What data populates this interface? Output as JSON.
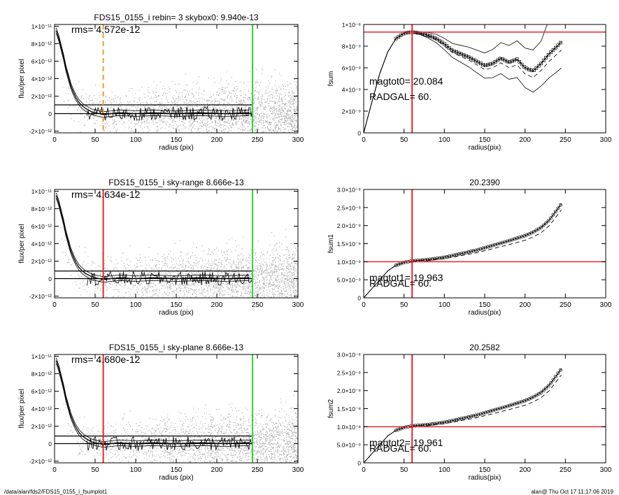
{
  "footer": {
    "path": "/data/alan/fds2/FDS15_0155_i_fsumplot1",
    "stamp": "alan@  Thu Oct 17 11:17:06 2019"
  },
  "colors": {
    "red": "#e8252b",
    "green": "#2fd62f",
    "orange": "#f29a2e",
    "scatter": "#a9a9a9"
  },
  "chart_data": [
    {
      "type": "scatter",
      "title": "FDS15_0155_i rebin= 3    skybox0:  9.940e-13",
      "annotation": "rms= 4.572e-12",
      "xlabel": "radius (pix)",
      "ylabel": "flux/per pixel",
      "xlim": [
        0,
        300
      ],
      "ylim": [
        -2.2e-12,
        1.02e-11
      ],
      "xticks": [
        0,
        50,
        100,
        150,
        200,
        250,
        300
      ],
      "yticks": [
        -2e-12,
        0,
        2e-12,
        4e-12,
        6e-12,
        8e-12,
        1e-11
      ],
      "ytick_labels": [
        "-2×10⁻¹²",
        "0",
        "2×10⁻¹²",
        "4×10⁻¹²",
        "6×10⁻¹²",
        "8×10⁻¹²",
        "1×10⁻¹¹"
      ],
      "hlines": [
        1e-12,
        0
      ],
      "vlines": [
        {
          "x": 60,
          "color": "orange",
          "style": "dashed"
        },
        {
          "x": 244,
          "color": "green",
          "style": "solid"
        }
      ],
      "profile_x": [
        2,
        5,
        8,
        11,
        14,
        17,
        20,
        23,
        26,
        30,
        34,
        38,
        42,
        46,
        50,
        55,
        60,
        70,
        80,
        100,
        120,
        150,
        180,
        210,
        240
      ],
      "profile_y": [
        9.5e-12,
        8.7e-12,
        7.6e-12,
        6.5e-12,
        5.2e-12,
        4.2e-12,
        3.2e-12,
        2.5e-12,
        1.9e-12,
        1.3e-12,
        9e-13,
        6e-13,
        4e-13,
        2e-13,
        1e-13,
        0.0,
        -1e-13,
        0.0,
        1e-13,
        0.0,
        1e-13,
        0.0,
        1e-13,
        0.0,
        1e-13
      ]
    },
    {
      "type": "line",
      "title": "",
      "xlabel": "radius(pix)",
      "ylabel": "fsum",
      "annotations": [
        "magtot0=  20.084",
        "RADGAL=     60."
      ],
      "xlim": [
        0,
        300
      ],
      "ylim": [
        0,
        1e-08
      ],
      "xticks": [
        0,
        50,
        100,
        150,
        200,
        250,
        300
      ],
      "yticks": [
        0,
        2e-09,
        4e-09,
        6e-09,
        8e-09,
        1e-08
      ],
      "ytick_labels": [
        "0",
        "2×10⁻⁹",
        "4×10⁻⁹",
        "6×10⁻⁹",
        "8×10⁻⁹",
        "1×10⁻⁸"
      ],
      "hline": 9.3e-09,
      "vline": 60,
      "x": [
        0,
        10,
        20,
        30,
        40,
        50,
        60,
        70,
        80,
        90,
        100,
        110,
        120,
        130,
        140,
        150,
        160,
        170,
        180,
        190,
        200,
        210,
        220,
        230,
        240,
        245
      ],
      "y": [
        0,
        2.8e-09,
        5.5e-09,
        7.5e-09,
        8.7e-09,
        9.2e-09,
        9.3e-09,
        9.2e-09,
        9e-09,
        8.7e-09,
        8.2e-09,
        7.6e-09,
        7.3e-09,
        7e-09,
        6.6e-09,
        6.2e-09,
        6.4e-09,
        6.9e-09,
        6.5e-09,
        6.8e-09,
        6e-09,
        5.7e-09,
        6.4e-09,
        7.3e-09,
        8e-09,
        8.4e-09
      ]
    },
    {
      "type": "scatter",
      "title": "FDS15_0155_i sky-range  8.666e-13",
      "annotation": "rms= 4.634e-12",
      "xlabel": "radius (pix)",
      "ylabel": "flux/per pixel",
      "xlim": [
        0,
        300
      ],
      "ylim": [
        -2.2e-12,
        1.02e-11
      ],
      "xticks": [
        0,
        50,
        100,
        150,
        200,
        250,
        300
      ],
      "yticks": [
        -2e-12,
        0,
        2e-12,
        4e-12,
        6e-12,
        8e-12,
        1e-11
      ],
      "ytick_labels": [
        "-2×10⁻¹²",
        "0",
        "2×10⁻¹²",
        "4×10⁻¹²",
        "6×10⁻¹²",
        "8×10⁻¹²",
        "1×10⁻¹¹"
      ],
      "hlines": [
        8.7e-13,
        0
      ],
      "vlines": [
        {
          "x": 60,
          "color": "red",
          "style": "solid"
        },
        {
          "x": 244,
          "color": "green",
          "style": "solid"
        }
      ],
      "profile_x": [
        2,
        5,
        8,
        11,
        14,
        17,
        20,
        23,
        26,
        30,
        34,
        38,
        42,
        46,
        50,
        55,
        60,
        70,
        80,
        100,
        120,
        150,
        180,
        210,
        240
      ],
      "profile_y": [
        9.5e-12,
        8.7e-12,
        7.6e-12,
        6.5e-12,
        5.2e-12,
        4.2e-12,
        3.2e-12,
        2.5e-12,
        1.9e-12,
        1.3e-12,
        9e-13,
        6e-13,
        4e-13,
        2e-13,
        1e-13,
        0.0,
        -1e-13,
        0.0,
        1e-13,
        0.0,
        1e-13,
        0.0,
        1e-13,
        0.0,
        1e-13
      ]
    },
    {
      "type": "line",
      "title": "20.2390",
      "xlabel": "radius(pix)",
      "ylabel": "fsum1",
      "annotations": [
        "magtot1=  19.963",
        "RADGAL=     60."
      ],
      "xlim": [
        0,
        300
      ],
      "ylim": [
        0,
        3e-08
      ],
      "xticks": [
        0,
        50,
        100,
        150,
        200,
        250,
        300
      ],
      "yticks": [
        0,
        5e-09,
        1e-08,
        1.5e-08,
        2e-08,
        2.5e-08,
        3e-08
      ],
      "ytick_labels": [
        "0",
        "5.0×10⁻⁹",
        "1.0×10⁻⁸",
        "1.5×10⁻⁸",
        "2.0×10⁻⁸",
        "2.5×10⁻⁸",
        "3.0×10⁻⁸"
      ],
      "hline": 1e-08,
      "vline": 60,
      "x": [
        0,
        10,
        20,
        30,
        40,
        50,
        60,
        80,
        100,
        120,
        140,
        160,
        180,
        200,
        210,
        220,
        230,
        240,
        245
      ],
      "y": [
        0,
        2.5e-09,
        5e-09,
        7.5e-09,
        9e-09,
        9.8e-09,
        1.02e-08,
        1.06e-08,
        1.12e-08,
        1.22e-08,
        1.32e-08,
        1.45e-08,
        1.58e-08,
        1.72e-08,
        1.82e-08,
        1.95e-08,
        2.15e-08,
        2.45e-08,
        2.6e-08
      ]
    },
    {
      "type": "scatter",
      "title": "FDS15_0155_i sky-plane  8.666e-13",
      "annotation": "rms= 4.680e-12",
      "xlabel": "radius (pix)",
      "ylabel": "flux/per pixel",
      "xlim": [
        0,
        300
      ],
      "ylim": [
        -2.2e-12,
        1.02e-11
      ],
      "xticks": [
        0,
        50,
        100,
        150,
        200,
        250,
        300
      ],
      "yticks": [
        -2e-12,
        0,
        2e-12,
        4e-12,
        6e-12,
        8e-12,
        1e-11
      ],
      "ytick_labels": [
        "-2×10⁻¹²",
        "0",
        "2×10⁻¹²",
        "4×10⁻¹²",
        "6×10⁻¹²",
        "8×10⁻¹²",
        "1×10⁻¹¹"
      ],
      "hlines": [
        8.7e-13,
        0
      ],
      "vlines": [
        {
          "x": 60,
          "color": "red",
          "style": "solid"
        },
        {
          "x": 244,
          "color": "green",
          "style": "solid"
        }
      ],
      "profile_x": [
        2,
        5,
        8,
        11,
        14,
        17,
        20,
        23,
        26,
        30,
        34,
        38,
        42,
        46,
        50,
        55,
        60,
        70,
        80,
        100,
        120,
        150,
        180,
        210,
        240
      ],
      "profile_y": [
        9.5e-12,
        8.7e-12,
        7.6e-12,
        6.5e-12,
        5.2e-12,
        4.2e-12,
        3.2e-12,
        2.5e-12,
        1.9e-12,
        1.3e-12,
        9e-13,
        6e-13,
        4e-13,
        2e-13,
        1e-13,
        0.0,
        -1e-13,
        0.0,
        1e-13,
        0.0,
        1e-13,
        0.0,
        1e-13,
        0.0,
        1e-13
      ]
    },
    {
      "type": "line",
      "title": "20.2582",
      "xlabel": "radius(pix)",
      "ylabel": "fsum2",
      "annotations": [
        "magtot2=  19.961",
        "RADGAL=     60."
      ],
      "xlim": [
        0,
        300
      ],
      "ylim": [
        0,
        3e-08
      ],
      "xticks": [
        0,
        50,
        100,
        150,
        200,
        250,
        300
      ],
      "yticks": [
        0,
        5e-09,
        1e-08,
        1.5e-08,
        2e-08,
        2.5e-08,
        3e-08
      ],
      "ytick_labels": [
        "0",
        "5.0×10⁻⁹",
        "1.0×10⁻⁸",
        "1.5×10⁻⁸",
        "2.0×10⁻⁸",
        "2.5×10⁻⁸",
        "3.0×10⁻⁸"
      ],
      "hline": 1e-08,
      "vline": 60,
      "x": [
        0,
        10,
        20,
        30,
        40,
        50,
        60,
        80,
        100,
        120,
        140,
        160,
        180,
        200,
        210,
        220,
        230,
        240,
        245
      ],
      "y": [
        0,
        2.5e-09,
        5e-09,
        7.5e-09,
        9e-09,
        9.8e-09,
        1.02e-08,
        1.06e-08,
        1.12e-08,
        1.22e-08,
        1.32e-08,
        1.45e-08,
        1.58e-08,
        1.72e-08,
        1.82e-08,
        1.95e-08,
        2.15e-08,
        2.45e-08,
        2.6e-08
      ]
    }
  ]
}
